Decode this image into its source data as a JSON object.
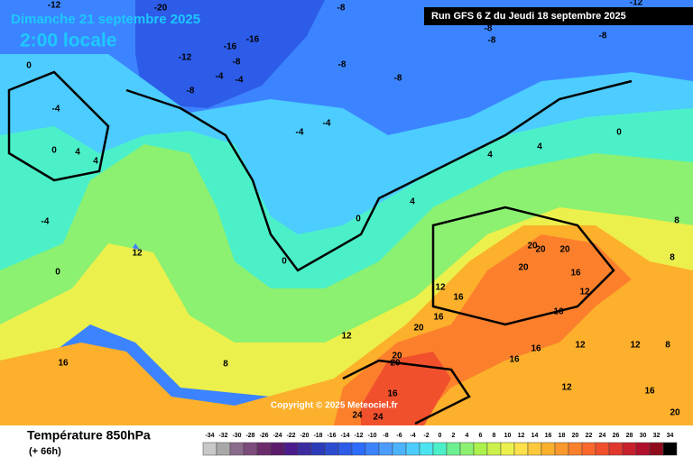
{
  "header": {
    "date": "Dimanche 21 septembre 2025",
    "time": "2:00 locale",
    "run": "Run GFS 6 Z du Jeudi 18 septembre 2025"
  },
  "map": {
    "copyright": "Copyright © 2025 Meteociel.fr",
    "labels": [
      "-12",
      "-20",
      "-8",
      "-12",
      "-16",
      "-16",
      "-8",
      "-4",
      "-4",
      "-8",
      "-8",
      "-8",
      "-8",
      "-8",
      "-8",
      "-12",
      "0",
      "-4",
      "0",
      "4",
      "4",
      "-4",
      "0",
      "-4",
      "-4",
      "0",
      "0",
      "4",
      "4",
      "4",
      "0",
      "12",
      "16",
      "8",
      "12",
      "12",
      "16",
      "16",
      "20",
      "20",
      "20",
      "16",
      "24",
      "24",
      "20",
      "20",
      "20",
      "20",
      "16",
      "12",
      "16",
      "8",
      "12",
      "16",
      "16",
      "12",
      "8",
      "12",
      "16",
      "20",
      "8"
    ]
  },
  "footer": {
    "title": "Température 850hPa",
    "lead": "(+ 66h)"
  },
  "scale": {
    "ticks": [
      -34,
      -32,
      -30,
      -28,
      -26,
      -24,
      -22,
      -20,
      -18,
      -16,
      -14,
      -12,
      -10,
      -8,
      -6,
      -4,
      -2,
      0,
      2,
      4,
      6,
      8,
      10,
      12,
      14,
      16,
      18,
      20,
      22,
      24,
      26,
      28,
      30,
      32,
      34
    ],
    "colors": [
      "#c8c8c8",
      "#a8a8a8",
      "#8c6c8c",
      "#7c4c7c",
      "#6c2c6c",
      "#5c1c6c",
      "#4c1c8c",
      "#3c2ca0",
      "#2c3cb8",
      "#2c4cd0",
      "#2c5ce8",
      "#2c6cff",
      "#3c84ff",
      "#4c9cff",
      "#4cb4ff",
      "#4cccff",
      "#4ce4f0",
      "#4cf0c8",
      "#6cf090",
      "#8cf070",
      "#acf04c",
      "#ccf04c",
      "#ecf04c",
      "#fce04c",
      "#fcc83c",
      "#fcb02c",
      "#fc982c",
      "#fc802c",
      "#fc682c",
      "#f0502c",
      "#e0382c",
      "#c8202c",
      "#b0102c",
      "#900c1c",
      "#000000"
    ]
  }
}
